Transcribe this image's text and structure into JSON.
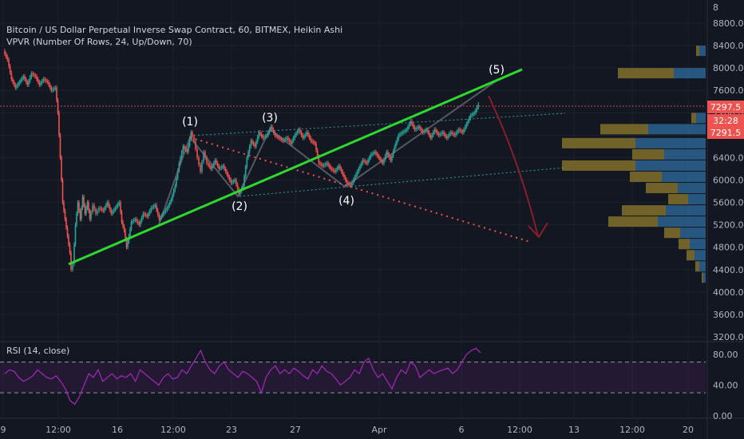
{
  "header": {
    "title": "Bitcoin / US Dollar Perpetual Inverse Swap Contract, 60, BITMEX, Heikin Ashi",
    "indicator": "VPVR (Number Of Rows, 24, Up/Down, 70)",
    "rsi_label": "RSI (14, close)"
  },
  "price_badges": {
    "last": "7297.5",
    "countdown": "32:28",
    "second": "7291.5"
  },
  "wave_labels": [
    "(1)",
    "(2)",
    "(3)",
    "(4)",
    "(5)"
  ],
  "colors": {
    "background": "#131722",
    "up": "#26a69a",
    "down": "#ef5350",
    "trendline": "#2fd82f",
    "rsi": "#9c27b0",
    "vp_up": "#2a5e8a",
    "vp_down": "#7c6a2b"
  },
  "chart_data": [
    {
      "type": "line",
      "style": "heikin-ashi candlesticks",
      "ylim": [
        3000,
        9000
      ],
      "price_ticks": [
        8800,
        8400,
        8000,
        7600,
        7200,
        6800,
        6400,
        6000,
        5600,
        5200,
        4800,
        4400,
        4000,
        3600,
        3200
      ],
      "price_tick_labels": [
        "8800.0",
        "8400.0",
        "8000.0",
        "7600.0",
        "7200.0",
        "6800.0",
        "6400.0",
        "6000.0",
        "5600.0",
        "5200.0",
        "4800.0",
        "4400.0",
        "4000.0",
        "3600.0",
        "3200.0"
      ],
      "top_partial_tick_label": "8",
      "x_tick_labels": [
        "9",
        "12:00",
        "16",
        "12:00",
        "23",
        "27",
        "Apr",
        "6",
        "12:00",
        "13",
        "12:00",
        "20"
      ],
      "close_path": [
        [
          0,
          8300
        ],
        [
          5,
          8150
        ],
        [
          10,
          7800
        ],
        [
          15,
          7650
        ],
        [
          20,
          7750
        ],
        [
          25,
          7850
        ],
        [
          30,
          7700
        ],
        [
          35,
          7900
        ],
        [
          40,
          7850
        ],
        [
          45,
          7700
        ],
        [
          50,
          7800
        ],
        [
          55,
          7750
        ],
        [
          60,
          7600
        ],
        [
          65,
          7650
        ],
        [
          68,
          7200
        ],
        [
          71,
          6400
        ],
        [
          74,
          5600
        ],
        [
          77,
          5300
        ],
        [
          80,
          5000
        ],
        [
          83,
          4700
        ],
        [
          85,
          4400
        ],
        [
          87,
          4500
        ],
        [
          90,
          5200
        ],
        [
          93,
          5600
        ],
        [
          96,
          5300
        ],
        [
          99,
          5700
        ],
        [
          102,
          5400
        ],
        [
          105,
          5600
        ],
        [
          108,
          5300
        ],
        [
          112,
          5550
        ],
        [
          116,
          5400
        ],
        [
          120,
          5500
        ],
        [
          125,
          5450
        ],
        [
          130,
          5600
        ],
        [
          135,
          5400
        ],
        [
          140,
          5500
        ],
        [
          145,
          5600
        ],
        [
          148,
          5250
        ],
        [
          151,
          5100
        ],
        [
          154,
          4800
        ],
        [
          157,
          5000
        ],
        [
          160,
          5250
        ],
        [
          165,
          5300
        ],
        [
          170,
          5200
        ],
        [
          175,
          5400
        ],
        [
          180,
          5350
        ],
        [
          185,
          5500
        ],
        [
          190,
          5550
        ],
        [
          195,
          5300
        ],
        [
          200,
          5400
        ],
        [
          205,
          5500
        ],
        [
          210,
          5650
        ],
        [
          215,
          5900
        ],
        [
          220,
          6300
        ],
        [
          225,
          6600
        ],
        [
          230,
          6500
        ],
        [
          235,
          6850
        ],
        [
          239,
          6700
        ],
        [
          243,
          6400
        ],
        [
          247,
          6150
        ],
        [
          251,
          6500
        ],
        [
          255,
          6300
        ],
        [
          260,
          6200
        ],
        [
          265,
          6350
        ],
        [
          270,
          6200
        ],
        [
          275,
          6250
        ],
        [
          280,
          6100
        ],
        [
          285,
          5950
        ],
        [
          290,
          6000
        ],
        [
          295,
          5750
        ],
        [
          300,
          5900
        ],
        [
          305,
          6400
        ],
        [
          310,
          6700
        ],
        [
          315,
          6600
        ],
        [
          320,
          6850
        ],
        [
          325,
          6750
        ],
        [
          330,
          6800
        ],
        [
          335,
          6950
        ],
        [
          340,
          6800
        ],
        [
          345,
          6750
        ],
        [
          350,
          6700
        ],
        [
          355,
          6750
        ],
        [
          360,
          6650
        ],
        [
          365,
          6800
        ],
        [
          370,
          6900
        ],
        [
          375,
          6750
        ],
        [
          380,
          6850
        ],
        [
          385,
          6700
        ],
        [
          390,
          6650
        ],
        [
          395,
          6300
        ],
        [
          400,
          6250
        ],
        [
          405,
          6300
        ],
        [
          410,
          6200
        ],
        [
          415,
          6150
        ],
        [
          420,
          6250
        ],
        [
          425,
          6100
        ],
        [
          430,
          5950
        ],
        [
          435,
          5900
        ],
        [
          440,
          6050
        ],
        [
          445,
          6200
        ],
        [
          450,
          6350
        ],
        [
          455,
          6300
        ],
        [
          460,
          6450
        ],
        [
          465,
          6500
        ],
        [
          470,
          6400
        ],
        [
          475,
          6300
        ],
        [
          480,
          6500
        ],
        [
          485,
          6350
        ],
        [
          490,
          6600
        ],
        [
          495,
          6800
        ],
        [
          500,
          6850
        ],
        [
          505,
          6900
        ],
        [
          510,
          7050
        ],
        [
          515,
          6900
        ],
        [
          520,
          6950
        ],
        [
          525,
          6850
        ],
        [
          530,
          6900
        ],
        [
          535,
          6750
        ],
        [
          540,
          6900
        ],
        [
          545,
          6800
        ],
        [
          550,
          6850
        ],
        [
          555,
          6750
        ],
        [
          560,
          6850
        ],
        [
          565,
          6800
        ],
        [
          570,
          6900
        ],
        [
          575,
          6850
        ],
        [
          580,
          7000
        ],
        [
          585,
          7150
        ],
        [
          590,
          7200
        ],
        [
          595,
          7350
        ]
      ],
      "vpvr_rows": [
        {
          "price": 8300,
          "up": 8,
          "down": 4
        },
        {
          "price": 7900,
          "up": 40,
          "down": 70
        },
        {
          "price": 7100,
          "up": 12,
          "down": 6
        },
        {
          "price": 6900,
          "up": 72,
          "down": 60
        },
        {
          "price": 6650,
          "up": 88,
          "down": 92
        },
        {
          "price": 6450,
          "up": 52,
          "down": 40
        },
        {
          "price": 6250,
          "up": 88,
          "down": 92
        },
        {
          "price": 6050,
          "up": 55,
          "down": 40
        },
        {
          "price": 5850,
          "up": 35,
          "down": 40
        },
        {
          "price": 5650,
          "up": 22,
          "down": 25
        },
        {
          "price": 5450,
          "up": 50,
          "down": 55
        },
        {
          "price": 5250,
          "up": 60,
          "down": 62
        },
        {
          "price": 5050,
          "up": 32,
          "down": 20
        },
        {
          "price": 4850,
          "up": 20,
          "down": 14
        },
        {
          "price": 4650,
          "up": 14,
          "down": 10
        },
        {
          "price": 4450,
          "up": 8,
          "down": 5
        },
        {
          "price": 4250,
          "up": 3,
          "down": 2
        }
      ]
    },
    {
      "type": "line",
      "title": "RSI (14, close)",
      "ylim": [
        0,
        100
      ],
      "ticks": [
        80,
        40,
        0
      ],
      "tick_labels": [
        "80.00",
        "40.00",
        "0.00"
      ],
      "bands": [
        70,
        30
      ],
      "series": [
        {
          "values": [
            55,
            60,
            58,
            50,
            45,
            48,
            52,
            60,
            55,
            50,
            48,
            52,
            45,
            35,
            20,
            15,
            25,
            40,
            55,
            50,
            60,
            45,
            50,
            55,
            48,
            52,
            50,
            55,
            45,
            60,
            55,
            50,
            45,
            40,
            50,
            55,
            48,
            50,
            60,
            55,
            65,
            75,
            85,
            70,
            60,
            55,
            65,
            70,
            60,
            55,
            50,
            58,
            55,
            50,
            45,
            30,
            50,
            60,
            65,
            55,
            60,
            55,
            62,
            58,
            52,
            48,
            60,
            55,
            65,
            58,
            55,
            48,
            40,
            45,
            50,
            60,
            55,
            70,
            75,
            60,
            50,
            55,
            45,
            35,
            50,
            60,
            55,
            70,
            65,
            50,
            55,
            60,
            55,
            58,
            60,
            62,
            55,
            60,
            70,
            80,
            85,
            88,
            82
          ]
        }
      ]
    }
  ]
}
